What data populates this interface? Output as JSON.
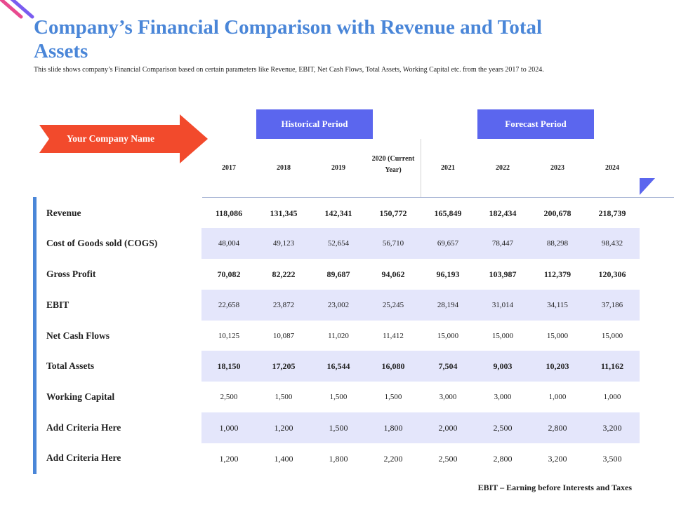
{
  "header": {
    "title": "Company’s Financial Comparison with Revenue and Total Assets",
    "subtitle": "This slide shows company’s Financial Comparison based on certain parameters like Revenue, EBIT, Net Cash Flows, Total Assets, Working Capital etc. from the years 2017 to 2024."
  },
  "company_arrow": {
    "label": "Your Company Name"
  },
  "periods": {
    "historical": "Historical Period",
    "forecast": "Forecast Period"
  },
  "years": [
    "2017",
    "2018",
    "2019",
    "2020 (Current Year)",
    "2021",
    "2022",
    "2023",
    "2024"
  ],
  "rows": [
    {
      "label": "Revenue",
      "values": [
        "118,086",
        "131,345",
        "142,341",
        "150,772",
        "165,849",
        "182,434",
        "200,678",
        "218,739"
      ]
    },
    {
      "label": "Cost of Goods sold (COGS)",
      "values": [
        "48,004",
        "49,123",
        "52,654",
        "56,710",
        "69,657",
        "78,447",
        "88,298",
        "98,432"
      ]
    },
    {
      "label": "Gross Profit",
      "values": [
        "70,082",
        "82,222",
        "89,687",
        "94,062",
        "96,193",
        "103,987",
        "112,379",
        "120,306"
      ]
    },
    {
      "label": "EBIT",
      "values": [
        "22,658",
        "23,872",
        "23,002",
        "25,245",
        "28,194",
        "31,014",
        "34,115",
        "37,186"
      ]
    },
    {
      "label": "Net Cash Flows",
      "values": [
        "10,125",
        "10,087",
        "11,020",
        "11,412",
        "15,000",
        "15,000",
        "15,000",
        "15,000"
      ]
    },
    {
      "label": "Total Assets",
      "values": [
        "18,150",
        "17,205",
        "16,544",
        "16,080",
        "7,504",
        "9,003",
        "10,203",
        "11,162"
      ]
    },
    {
      "label": "Working Capital",
      "values": [
        "2,500",
        "1,500",
        "1,500",
        "1,500",
        "3,000",
        "3,000",
        "1,000",
        "1,000"
      ]
    },
    {
      "label": "Add Criteria Here",
      "values": [
        "1,000",
        "1,200",
        "1,500",
        "1,800",
        "2,000",
        "2,500",
        "2,800",
        "3,200"
      ]
    },
    {
      "label": "Add Criteria Here",
      "values": [
        "1,200",
        "1,400",
        "1,800",
        "2,200",
        "2,500",
        "2,800",
        "3,200",
        "3,500"
      ]
    }
  ],
  "footnote": "EBIT – Earning before Interests and Taxes",
  "colors": {
    "title": "#4a86d8",
    "period_box": "#5b66ee",
    "arrow": "#f24a2c",
    "row_band": "#e4e6fb",
    "sidebar": "#4a86d8"
  }
}
